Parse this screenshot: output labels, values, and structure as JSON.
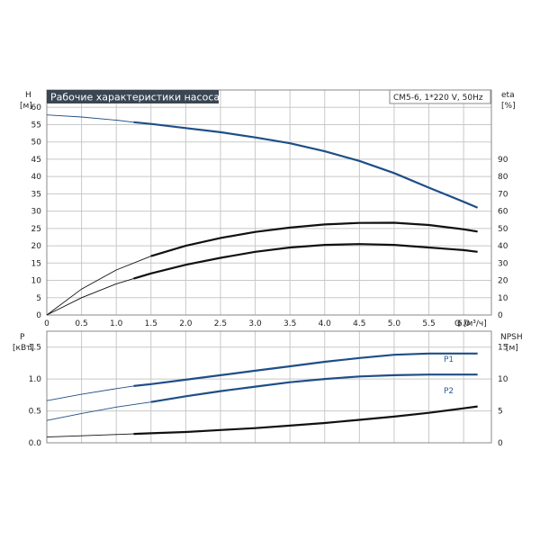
{
  "chart_data": [
    {
      "type": "line",
      "title": "Рабочие характеристики насоса",
      "info": "CM5-6, 1*220 V, 50Hz",
      "xlabel": "Q [м³/ч]",
      "xlim": [
        0,
        6.4
      ],
      "xticks": [
        "0",
        "0.5",
        "1.0",
        "1.5",
        "2.0",
        "2.5",
        "3.0",
        "3.5",
        "4.0",
        "4.5",
        "5.0",
        "5.5",
        "6.0"
      ],
      "y_left_label_top": "H",
      "y_left_label_unit": "[м]",
      "ylim_left": [
        0,
        65
      ],
      "yticks_left": [
        "0",
        "5",
        "10",
        "15",
        "20",
        "25",
        "30",
        "35",
        "40",
        "45",
        "50",
        "55",
        "60"
      ],
      "y_right_label_top": "eta",
      "y_right_label_unit": "[%]",
      "ylim_right": [
        0,
        130
      ],
      "yticks_right": [
        "0",
        "10",
        "20",
        "30",
        "40",
        "50",
        "60",
        "70",
        "80",
        "90"
      ],
      "grid": true,
      "series": [
        {
          "axis": "left",
          "color": "#1f4e86",
          "x": [
            0,
            0.5,
            1.0,
            1.25,
            1.5,
            2.0,
            2.5,
            3.0,
            3.5,
            4.0,
            4.5,
            5.0,
            5.5,
            6.0,
            6.2
          ],
          "values": [
            57.8,
            57.2,
            56.3,
            55.7,
            55.2,
            54.0,
            52.8,
            51.3,
            49.6,
            47.3,
            44.5,
            41.0,
            36.8,
            32.7,
            31.0
          ]
        },
        {
          "axis": "right",
          "color": "#111111",
          "x": [
            0,
            0.5,
            1.0,
            1.5,
            2.0,
            2.5,
            3.0,
            3.5,
            4.0,
            4.5,
            5.0,
            5.5,
            6.0,
            6.2
          ],
          "values": [
            0,
            15,
            26,
            34,
            40,
            44.5,
            48,
            50.5,
            52.3,
            53.2,
            53.3,
            52.0,
            49.5,
            48.2
          ]
        },
        {
          "axis": "right",
          "color": "#111111",
          "x": [
            0,
            0.5,
            1.0,
            1.25,
            1.5,
            2.0,
            2.5,
            3.0,
            3.5,
            4.0,
            4.5,
            5.0,
            5.5,
            6.0,
            6.2
          ],
          "values": [
            0,
            10,
            18,
            21,
            24,
            29,
            33,
            36.5,
            39,
            40.5,
            41,
            40.5,
            39,
            37.5,
            36.5
          ]
        }
      ]
    },
    {
      "type": "line",
      "xlim": [
        0,
        6.4
      ],
      "y_left_label_top": "P",
      "y_left_label_unit": "[кВт]",
      "ylim_left": [
        0,
        1.75
      ],
      "yticks_left": [
        "0.0",
        "0.5",
        "1.0",
        "1.5"
      ],
      "y_right_label_top": "NPSH",
      "y_right_label_unit": "[м]",
      "ylim_right": [
        0,
        17.5
      ],
      "yticks_right": [
        "0",
        "5",
        "10",
        "15"
      ],
      "grid": true,
      "series": [
        {
          "name": "P1",
          "axis": "left",
          "color": "#1f4e86",
          "x": [
            0,
            0.5,
            1.0,
            1.25,
            1.5,
            2.0,
            2.5,
            3.0,
            3.5,
            4.0,
            4.5,
            5.0,
            5.5,
            6.0,
            6.2
          ],
          "values": [
            0.66,
            0.76,
            0.85,
            0.89,
            0.92,
            0.99,
            1.06,
            1.13,
            1.2,
            1.27,
            1.33,
            1.38,
            1.4,
            1.4,
            1.4
          ]
        },
        {
          "name": "P2",
          "axis": "left",
          "color": "#1f4e86",
          "x": [
            0,
            0.5,
            1.0,
            1.5,
            2.0,
            2.5,
            3.0,
            3.5,
            4.0,
            4.5,
            5.0,
            5.5,
            6.0,
            6.2
          ],
          "values": [
            0.35,
            0.46,
            0.56,
            0.64,
            0.73,
            0.81,
            0.88,
            0.95,
            1.0,
            1.04,
            1.06,
            1.07,
            1.07,
            1.07
          ]
        },
        {
          "axis": "right",
          "color": "#111111",
          "x": [
            0,
            0.5,
            1.0,
            1.25,
            1.5,
            2.0,
            2.5,
            3.0,
            3.5,
            4.0,
            4.5,
            5.0,
            5.5,
            6.0,
            6.2
          ],
          "values": [
            0.9,
            1.1,
            1.3,
            1.4,
            1.5,
            1.7,
            2.0,
            2.3,
            2.7,
            3.1,
            3.6,
            4.1,
            4.7,
            5.4,
            5.7
          ]
        }
      ]
    }
  ]
}
